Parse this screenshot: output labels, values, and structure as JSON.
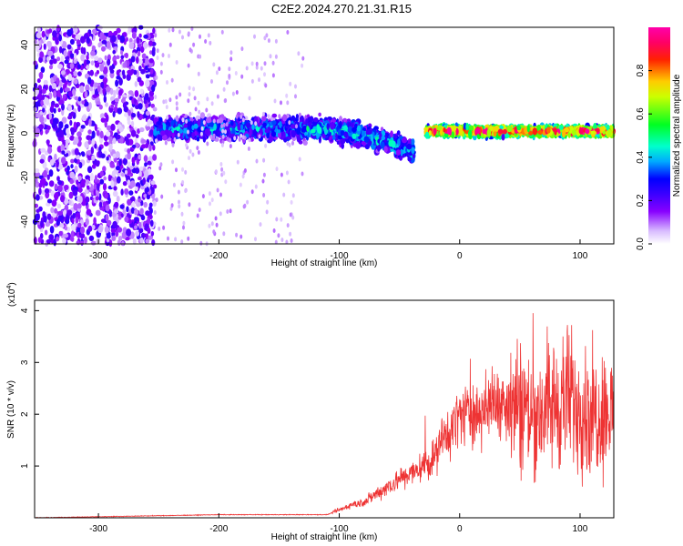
{
  "title": "C2E2.2024.270.21.31.R15",
  "chart_data": [
    {
      "type": "heatmap",
      "xlabel": "Height of straight line (km)",
      "ylabel": "Frequency (Hz)",
      "xlim": [
        -353,
        128
      ],
      "ylim": [
        -50,
        48
      ],
      "xticks": [
        -300,
        -200,
        -100,
        0,
        100
      ],
      "yticks": [
        -40,
        -20,
        0,
        20,
        40
      ],
      "colorbar": {
        "label": "Normalized spectral amplitude",
        "range": [
          0,
          1
        ],
        "ticks": [
          0.0,
          0.2,
          0.4,
          0.6,
          0.8
        ],
        "tick_labels": [
          "0.0",
          "0.2",
          "0.4",
          "0.6",
          "0.8"
        ],
        "colormap": "rainbow (white-lavender-purple-blue-cyan-green-yellow-red-magenta)"
      },
      "regions": [
        {
          "x_range": [
            -353,
            -253
          ],
          "y_range": [
            -50,
            48
          ],
          "amplitude": 0.12,
          "description": "broadband noise"
        },
        {
          "x_range": [
            -253,
            -130
          ],
          "center_y": 2,
          "half_width": 7,
          "amplitude": 0.35
        },
        {
          "x_range": [
            -130,
            -38
          ],
          "center_y_start": 2,
          "center_y_end": -8,
          "half_width": 7,
          "amplitude": 0.4
        },
        {
          "x_range": [
            -28,
            128
          ],
          "center_y": 1,
          "half_width": 3,
          "amplitude": 0.9
        }
      ]
    },
    {
      "type": "line",
      "xlabel": "Height of straight line (km)",
      "ylabel": "SNR (10 * v/v)",
      "scale_note": "(x10^4)",
      "scale_base": "(x10",
      "scale_exp": "4",
      "xlim": [
        -353,
        128
      ],
      "ylim": [
        0,
        4.2
      ],
      "xticks": [
        -300,
        -200,
        -100,
        0,
        100
      ],
      "yticks": [
        1,
        2,
        3,
        4
      ],
      "series": [
        {
          "color": "#ee3333",
          "x": [
            -353,
            -300,
            -250,
            -200,
            -150,
            -110,
            -100,
            -90,
            -80,
            -70,
            -60,
            -50,
            -40,
            -30,
            -25,
            -20,
            -15,
            -10,
            -5,
            0,
            10,
            20,
            30,
            40,
            50,
            60,
            70,
            80,
            90,
            100,
            110,
            120,
            128
          ],
          "y": [
            0.0,
            0.02,
            0.04,
            0.06,
            0.06,
            0.06,
            0.15,
            0.25,
            0.3,
            0.45,
            0.6,
            0.75,
            0.85,
            1.0,
            1.1,
            1.2,
            1.5,
            1.6,
            1.8,
            2.0,
            2.0,
            2.1,
            2.2,
            2.3,
            2.2,
            2.0,
            2.1,
            2.2,
            2.3,
            2.2,
            2.0,
            2.1,
            2.0
          ]
        }
      ]
    }
  ]
}
